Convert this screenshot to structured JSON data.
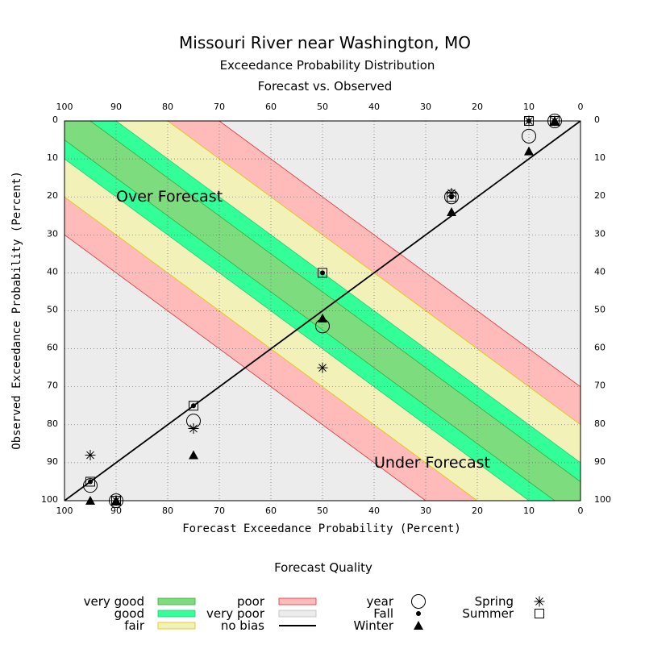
{
  "chart_data": {
    "type": "scatter",
    "title": "Missouri River near Washington, MO",
    "subtitle_1": "Exceedance Probability Distribution",
    "subtitle_2": "Forecast vs. Observed",
    "xlabel": "Forecast Exceedance Probability (Percent)",
    "ylabel": "Observed Exceedance Probability (Percent)",
    "xlim": [
      100,
      0
    ],
    "ylim": [
      0,
      100
    ],
    "x_ticks": [
      100,
      90,
      80,
      70,
      60,
      50,
      40,
      30,
      20,
      10,
      0
    ],
    "y_ticks": [
      0,
      10,
      20,
      30,
      40,
      50,
      60,
      70,
      80,
      90,
      100
    ],
    "grid": true,
    "region_labels": {
      "over": "Over Forecast",
      "under": "Under Forecast"
    },
    "bands": [
      {
        "name": "very good",
        "color": "#7ddc7d",
        "edge": "#3caa3c",
        "half_width": 5
      },
      {
        "name": "good",
        "color": "#33ff99",
        "edge": "#22cc77",
        "half_width": 10
      },
      {
        "name": "fair",
        "color": "#f2f2b8",
        "edge": "#e0c400",
        "half_width": 20
      },
      {
        "name": "poor",
        "color": "#ffbaba",
        "edge": "#e03333",
        "half_width": 30
      },
      {
        "name": "very poor",
        "color": "#ececec",
        "edge": "#bbbbbb",
        "half_width": 100
      }
    ],
    "series": [
      {
        "name": "year",
        "marker": "circle",
        "points": [
          [
            95,
            96
          ],
          [
            90,
            100
          ],
          [
            75,
            79
          ],
          [
            50,
            54
          ],
          [
            25,
            20
          ],
          [
            10,
            4
          ],
          [
            5,
            0
          ]
        ]
      },
      {
        "name": "Fall",
        "marker": "dot",
        "points": [
          [
            95,
            95
          ],
          [
            90,
            100
          ],
          [
            75,
            75
          ],
          [
            50,
            40
          ],
          [
            25,
            20
          ],
          [
            10,
            0
          ],
          [
            5,
            0
          ]
        ]
      },
      {
        "name": "Winter",
        "marker": "triangle",
        "points": [
          [
            95,
            100
          ],
          [
            90,
            100
          ],
          [
            75,
            88
          ],
          [
            50,
            52
          ],
          [
            25,
            24
          ],
          [
            10,
            8
          ],
          [
            5,
            0
          ]
        ]
      },
      {
        "name": "Spring",
        "marker": "asterisk",
        "points": [
          [
            95,
            88
          ],
          [
            90,
            100
          ],
          [
            75,
            81
          ],
          [
            50,
            65
          ],
          [
            25,
            19
          ],
          [
            10,
            0
          ],
          [
            5,
            0
          ]
        ]
      },
      {
        "name": "Summer",
        "marker": "square",
        "points": [
          [
            95,
            95
          ],
          [
            90,
            100
          ],
          [
            75,
            75
          ],
          [
            50,
            40
          ],
          [
            25,
            20
          ],
          [
            10,
            0
          ],
          [
            5,
            0
          ]
        ]
      }
    ],
    "legend": {
      "title": "Forecast Quality",
      "quality_items": [
        {
          "label": "very good",
          "color": "#7ddc7d",
          "edge": "#3caa3c"
        },
        {
          "label": "good",
          "color": "#33ff99",
          "edge": "#22cc77"
        },
        {
          "label": "fair",
          "color": "#f2f2b8",
          "edge": "#e0c400"
        },
        {
          "label": "poor",
          "color": "#ffbaba",
          "edge": "#e03333"
        },
        {
          "label": "very poor",
          "color": "#ececec",
          "edge": "#bbbbbb"
        },
        {
          "label": "no bias",
          "line": "#000000"
        }
      ],
      "marker_items": [
        {
          "label": "year",
          "marker": "circle"
        },
        {
          "label": "Fall",
          "marker": "dot"
        },
        {
          "label": "Winter",
          "marker": "triangle"
        },
        {
          "label": "Spring",
          "marker": "asterisk"
        },
        {
          "label": "Summer",
          "marker": "square"
        }
      ]
    }
  }
}
